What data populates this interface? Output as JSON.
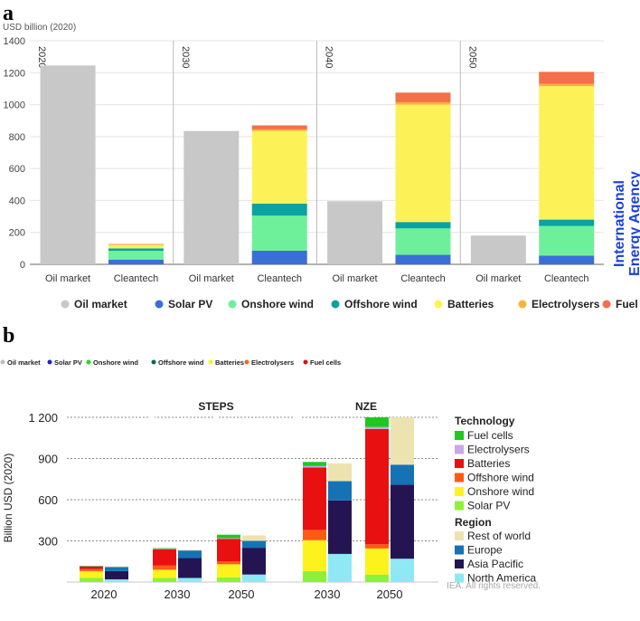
{
  "panel_a": {
    "panel_label": "a",
    "brand_line1": "International",
    "brand_line2": "Energy Agency",
    "brand_color": "#1a3fe0",
    "chart_data": {
      "type": "bar",
      "stacked": true,
      "ylabel": "USD billion (2020)",
      "ylim": [
        0,
        1400
      ],
      "yticks": [
        0,
        200,
        400,
        600,
        800,
        1000,
        1200,
        1400
      ],
      "groups": [
        {
          "year": "2020",
          "bars": [
            {
              "label": "Oil market",
              "segments": {
                "Oil market": 1245
              }
            },
            {
              "label": "Cleantech",
              "segments": {
                "Solar PV": 30,
                "Onshore wind": 55,
                "Offshore wind": 15,
                "Batteries": 22,
                "Electrolysers": 2,
                "Fuel cells": 3
              }
            }
          ]
        },
        {
          "year": "2030",
          "bars": [
            {
              "label": "Oil market",
              "segments": {
                "Oil market": 835
              }
            },
            {
              "label": "Cleantech",
              "segments": {
                "Solar PV": 85,
                "Onshore wind": 220,
                "Offshore wind": 75,
                "Batteries": 455,
                "Electrolysers": 10,
                "Fuel cells": 25
              }
            }
          ]
        },
        {
          "year": "2040",
          "bars": [
            {
              "label": "Oil market",
              "segments": {
                "Oil market": 395
              }
            },
            {
              "label": "Cleantech",
              "segments": {
                "Solar PV": 60,
                "Onshore wind": 165,
                "Offshore wind": 40,
                "Batteries": 735,
                "Electrolysers": 15,
                "Fuel cells": 60
              }
            }
          ]
        },
        {
          "year": "2050",
          "bars": [
            {
              "label": "Oil market",
              "segments": {
                "Oil market": 180
              }
            },
            {
              "label": "Cleantech",
              "segments": {
                "Solar PV": 55,
                "Onshore wind": 185,
                "Offshore wind": 40,
                "Batteries": 835,
                "Electrolysers": 15,
                "Fuel cells": 75
              }
            }
          ]
        }
      ],
      "legend": [
        {
          "name": "Oil market",
          "color": "#c8c8c8"
        },
        {
          "name": "Solar PV",
          "color": "#3a6fd8"
        },
        {
          "name": "Onshore wind",
          "color": "#6ef09a"
        },
        {
          "name": "Offshore wind",
          "color": "#0aa39e"
        },
        {
          "name": "Batteries",
          "color": "#fcf257"
        },
        {
          "name": "Electrolysers",
          "color": "#f7b23b"
        },
        {
          "name": "Fuel cells",
          "color": "#f2704a"
        }
      ]
    }
  },
  "panel_b": {
    "panel_label": "b",
    "footer": "IEA. All rights reserved.",
    "top_legend": [
      {
        "name": "Oil market",
        "color": "#bdbdbd"
      },
      {
        "name": "Solar PV",
        "color": "#1f1fd0"
      },
      {
        "name": "Onshore wind",
        "color": "#18e018"
      },
      {
        "name": "Offshore wind",
        "color": "#0b6b3a"
      },
      {
        "name": "Batteries",
        "color": "#f5f52a"
      },
      {
        "name": "Electrolysers",
        "color": "#f06a1a"
      },
      {
        "name": "Fuel cells",
        "color": "#e01010"
      }
    ],
    "chart_data": {
      "type": "bar",
      "stacked": true,
      "ylabel": "Billion USD (2020)",
      "ylim": [
        0,
        1200
      ],
      "yticks": [
        {
          "value": 300,
          "label": "300"
        },
        {
          "value": 600,
          "label": "600"
        },
        {
          "value": 900,
          "label": "900"
        },
        {
          "value": 1200,
          "label": "1 200"
        }
      ],
      "scenario_labels": [
        "STEPS",
        "NZE"
      ],
      "groups": [
        {
          "label": "2020",
          "tech": {
            "Solar PV": 30,
            "Onshore wind": 50,
            "Offshore wind": 15,
            "Batteries": 20,
            "Electrolysers": 1,
            "Fuel cells": 3
          },
          "region": {
            "North America": 20,
            "Asia Pacific": 60,
            "Europe": 30,
            "Rest of world": 5
          }
        },
        {
          "label": "2030",
          "tech": {
            "Solar PV": 30,
            "Onshore wind": 60,
            "Offshore wind": 30,
            "Batteries": 120,
            "Electrolysers": 2,
            "Fuel cells": 5
          },
          "region": {
            "North America": 30,
            "Asia Pacific": 145,
            "Europe": 55,
            "Rest of world": 5
          }
        },
        {
          "label": "2050",
          "tech": {
            "Solar PV": 35,
            "Onshore wind": 95,
            "Offshore wind": 20,
            "Batteries": 165,
            "Electrolysers": 5,
            "Fuel cells": 25
          },
          "region": {
            "North America": 55,
            "Asia Pacific": 195,
            "Europe": 50,
            "Rest of world": 40
          }
        },
        {
          "label": "2030",
          "tech": {
            "Solar PV": 80,
            "Onshore wind": 225,
            "Offshore wind": 75,
            "Batteries": 455,
            "Electrolysers": 10,
            "Fuel cells": 30
          },
          "region": {
            "North America": 205,
            "Asia Pacific": 390,
            "Europe": 140,
            "Rest of world": 130
          }
        },
        {
          "label": "2050",
          "tech": {
            "Solar PV": 55,
            "Onshore wind": 190,
            "Offshore wind": 30,
            "Batteries": 840,
            "Electrolysers": 15,
            "Fuel cells": 70
          },
          "region": {
            "North America": 170,
            "Asia Pacific": 540,
            "Europe": 145,
            "Rest of world": 345
          }
        }
      ],
      "legend_title_tech": "Technology",
      "legend_tech": [
        {
          "name": "Fuel cells",
          "color": "#1ec81e"
        },
        {
          "name": "Electrolysers",
          "color": "#c8a8e8"
        },
        {
          "name": "Batteries",
          "color": "#e81010"
        },
        {
          "name": "Offshore wind",
          "color": "#ff5a14"
        },
        {
          "name": "Onshore wind",
          "color": "#fdf21c"
        },
        {
          "name": "Solar PV",
          "color": "#8ff03a"
        }
      ],
      "legend_title_region": "Region",
      "legend_region": [
        {
          "name": "Rest of world",
          "color": "#ece3b0"
        },
        {
          "name": "Europe",
          "color": "#1573b5"
        },
        {
          "name": "Asia Pacific",
          "color": "#241552"
        },
        {
          "name": "North America",
          "color": "#8fe8f4"
        }
      ]
    }
  }
}
